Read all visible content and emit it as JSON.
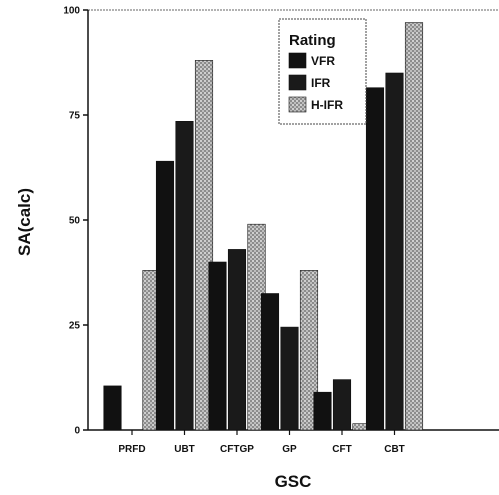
{
  "chart_data": {
    "type": "bar",
    "xlabel": "GSC",
    "ylabel": "SA(calc)",
    "ylim": [
      0,
      100
    ],
    "yticks": [
      0,
      25,
      50,
      75,
      100
    ],
    "categories": [
      "PRFD",
      "UBT",
      "CFTGP",
      "GP",
      "CFT",
      "CBT"
    ],
    "legend_title": "Rating",
    "legend_position": "top-right",
    "grid": false,
    "series": [
      {
        "name": "VFR",
        "color": "#111111",
        "values": [
          10.5,
          64,
          40,
          32.5,
          9,
          81.5
        ]
      },
      {
        "name": "IFR",
        "color": "#1a1a1a",
        "values": [
          0,
          73.5,
          43,
          24.5,
          12,
          85
        ]
      },
      {
        "name": "H-IFR",
        "color": "#9a9a9a",
        "pattern": true,
        "values": [
          38,
          88,
          49,
          38,
          1.5,
          97
        ]
      }
    ]
  }
}
